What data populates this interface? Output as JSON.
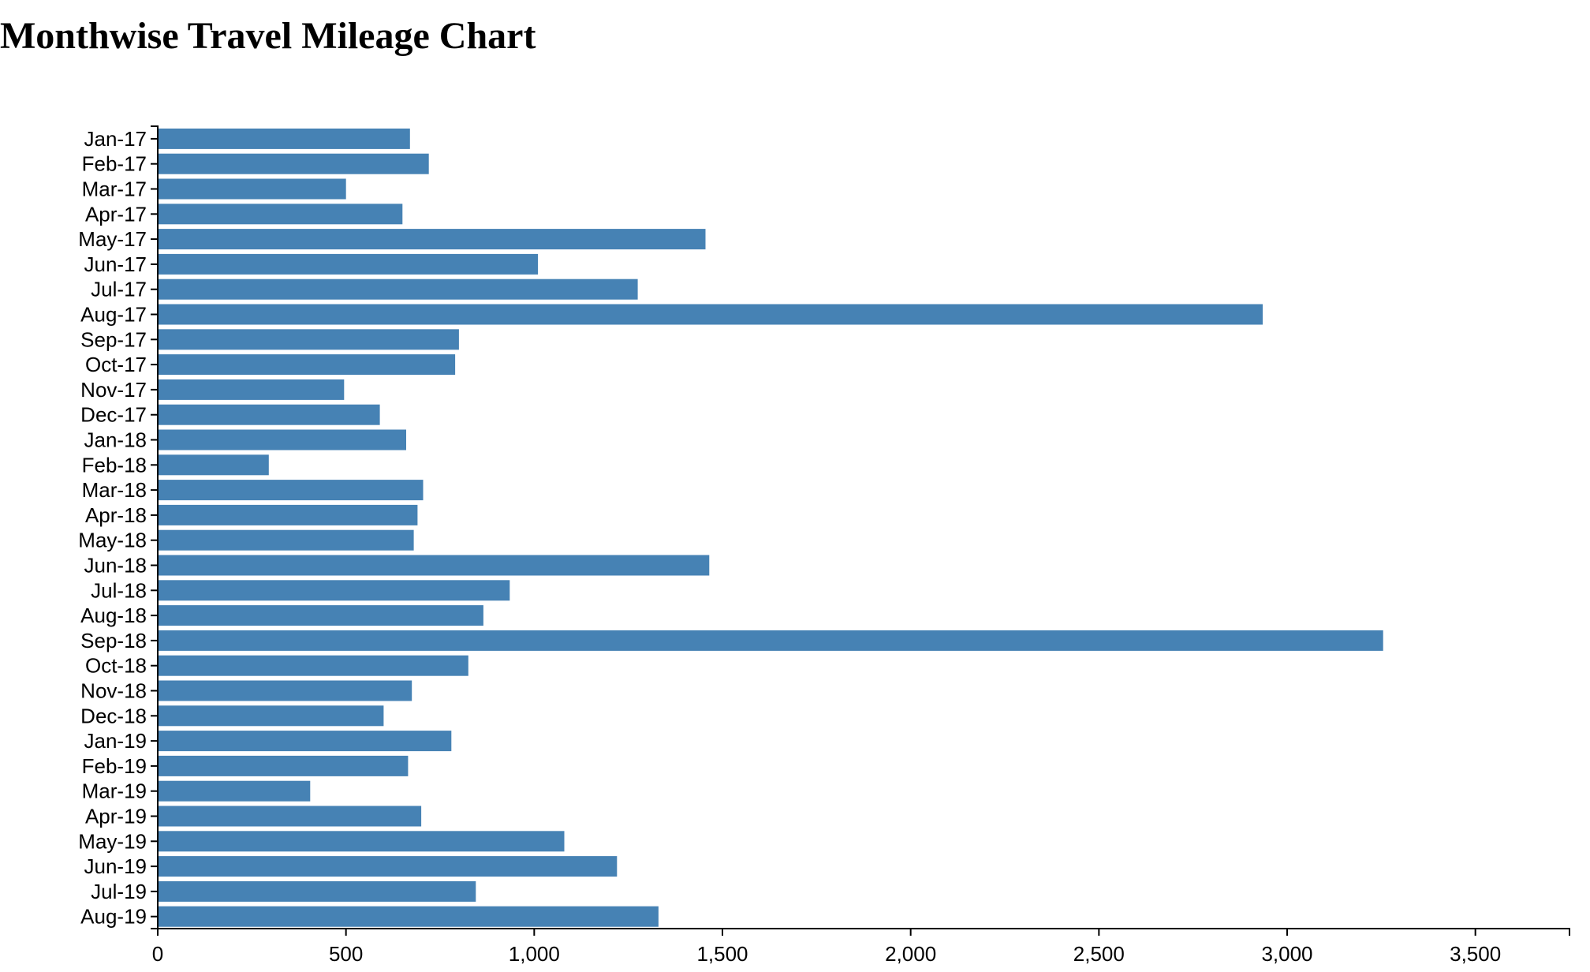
{
  "chart_data": {
    "type": "bar",
    "orientation": "horizontal",
    "title": "Monthwise Travel Mileage Chart",
    "xlabel": "",
    "ylabel": "",
    "xlim": [
      0,
      3750
    ],
    "x_ticks": [
      0,
      500,
      1000,
      1500,
      2000,
      2500,
      3000,
      3500
    ],
    "x_tick_labels": [
      "0",
      "500",
      "1,000",
      "1,500",
      "2,000",
      "2,500",
      "3,000",
      "3,500"
    ],
    "grid": false,
    "legend": "none",
    "bar_color": "#4682b4",
    "categories": [
      "Jan-17",
      "Feb-17",
      "Mar-17",
      "Apr-17",
      "May-17",
      "Jun-17",
      "Jul-17",
      "Aug-17",
      "Sep-17",
      "Oct-17",
      "Nov-17",
      "Dec-17",
      "Jan-18",
      "Feb-18",
      "Mar-18",
      "Apr-18",
      "May-18",
      "Jun-18",
      "Jul-18",
      "Aug-18",
      "Sep-18",
      "Oct-18",
      "Nov-18",
      "Dec-18",
      "Jan-19",
      "Feb-19",
      "Mar-19",
      "Apr-19",
      "May-19",
      "Jun-19",
      "Jul-19",
      "Aug-19"
    ],
    "values": [
      670,
      720,
      500,
      650,
      1455,
      1010,
      1275,
      2935,
      800,
      790,
      495,
      590,
      660,
      295,
      705,
      690,
      680,
      1465,
      935,
      865,
      3255,
      825,
      675,
      600,
      780,
      665,
      405,
      700,
      1080,
      1220,
      845,
      1330
    ]
  }
}
